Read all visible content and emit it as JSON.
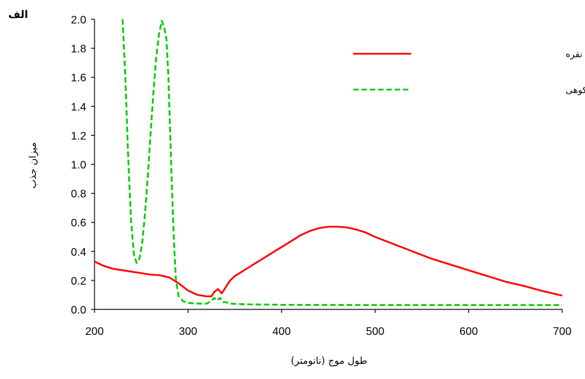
{
  "chart_data": {
    "type": "line",
    "panel_label": "الف",
    "xlabel": "طول موج (نانومتر)",
    "ylabel": "میزان جذب",
    "xlim": [
      200,
      700
    ],
    "ylim": [
      0,
      2.0
    ],
    "xticks": [
      "200",
      "300",
      "400",
      "500",
      "600",
      "700"
    ],
    "yticks": [
      "0.0",
      "0.2",
      "0.4",
      "0.6",
      "0.8",
      "1.0",
      "1.2",
      "1.4",
      "1.6",
      "1.8",
      "2.0"
    ],
    "grid": false,
    "legend_position": "top-right",
    "series": [
      {
        "name": "عصاره آویشن کوهی و نانوذره نقره",
        "color": "#ff0000",
        "style": "solid",
        "points": [
          [
            200,
            0.33
          ],
          [
            210,
            0.3
          ],
          [
            220,
            0.28
          ],
          [
            230,
            0.27
          ],
          [
            240,
            0.26
          ],
          [
            250,
            0.25
          ],
          [
            260,
            0.24
          ],
          [
            270,
            0.235
          ],
          [
            280,
            0.22
          ],
          [
            290,
            0.18
          ],
          [
            300,
            0.13
          ],
          [
            310,
            0.1
          ],
          [
            320,
            0.09
          ],
          [
            325,
            0.09
          ],
          [
            328,
            0.12
          ],
          [
            332,
            0.14
          ],
          [
            336,
            0.11
          ],
          [
            340,
            0.15
          ],
          [
            345,
            0.2
          ],
          [
            350,
            0.23
          ],
          [
            360,
            0.27
          ],
          [
            370,
            0.31
          ],
          [
            380,
            0.35
          ],
          [
            390,
            0.39
          ],
          [
            400,
            0.43
          ],
          [
            410,
            0.47
          ],
          [
            420,
            0.51
          ],
          [
            430,
            0.54
          ],
          [
            440,
            0.56
          ],
          [
            450,
            0.57
          ],
          [
            460,
            0.57
          ],
          [
            470,
            0.565
          ],
          [
            480,
            0.55
          ],
          [
            490,
            0.53
          ],
          [
            500,
            0.5
          ],
          [
            520,
            0.45
          ],
          [
            540,
            0.4
          ],
          [
            560,
            0.35
          ],
          [
            580,
            0.31
          ],
          [
            600,
            0.27
          ],
          [
            620,
            0.23
          ],
          [
            640,
            0.19
          ],
          [
            660,
            0.16
          ],
          [
            680,
            0.125
          ],
          [
            700,
            0.095
          ]
        ]
      },
      {
        "name": "عصاره آویشن کوهی",
        "color": "#00cc00",
        "style": "dashed",
        "points": [
          [
            230,
            2.0
          ],
          [
            233,
            1.6
          ],
          [
            236,
            1.05
          ],
          [
            239,
            0.62
          ],
          [
            242,
            0.38
          ],
          [
            245,
            0.32
          ],
          [
            248,
            0.35
          ],
          [
            251,
            0.46
          ],
          [
            254,
            0.66
          ],
          [
            257,
            0.92
          ],
          [
            260,
            1.22
          ],
          [
            263,
            1.5
          ],
          [
            266,
            1.74
          ],
          [
            269,
            1.9
          ],
          [
            272,
            1.99
          ],
          [
            275,
            1.93
          ],
          [
            277,
            1.86
          ],
          [
            279,
            1.6
          ],
          [
            281,
            1.2
          ],
          [
            283,
            0.8
          ],
          [
            285,
            0.45
          ],
          [
            287,
            0.2
          ],
          [
            290,
            0.09
          ],
          [
            295,
            0.055
          ],
          [
            300,
            0.045
          ],
          [
            310,
            0.04
          ],
          [
            320,
            0.04
          ],
          [
            325,
            0.06
          ],
          [
            328,
            0.08
          ],
          [
            331,
            0.06
          ],
          [
            334,
            0.08
          ],
          [
            337,
            0.05
          ],
          [
            340,
            0.05
          ],
          [
            345,
            0.04
          ],
          [
            360,
            0.035
          ],
          [
            400,
            0.032
          ],
          [
            500,
            0.03
          ],
          [
            600,
            0.03
          ],
          [
            700,
            0.03
          ]
        ]
      }
    ]
  }
}
